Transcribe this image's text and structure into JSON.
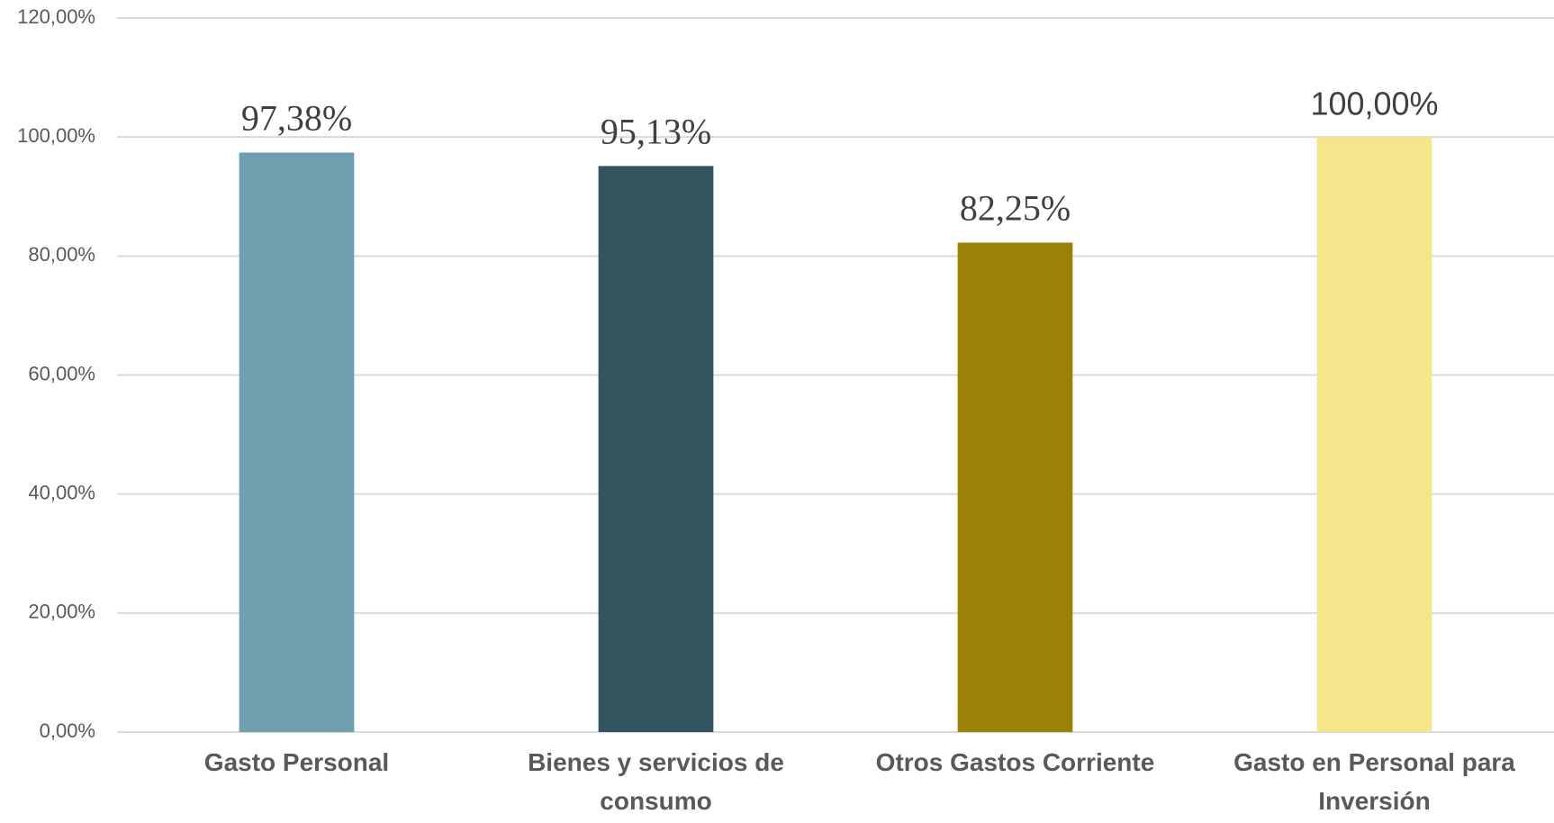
{
  "chart_data": {
    "type": "bar",
    "categories": [
      "Gasto Personal",
      "Bienes y servicios de consumo",
      "Otros Gastos Corriente",
      "Gasto en Personal para Inversión"
    ],
    "values": [
      97.38,
      95.13,
      82.25,
      100
    ],
    "value_labels": [
      "97,38%",
      "95,13%",
      "82,25%",
      "100,00%"
    ],
    "colors": [
      "#6fa0b0",
      "#33535e",
      "#9a8206",
      "#f5e68c"
    ],
    "ylim": [
      0,
      120
    ],
    "yticks": [
      {
        "value": 0,
        "label": "0,00%"
      },
      {
        "value": 20,
        "label": "20,00%"
      },
      {
        "value": 40,
        "label": "40,00%"
      },
      {
        "value": 60,
        "label": "60,00%"
      },
      {
        "value": 80,
        "label": "80,00%"
      },
      {
        "value": 100,
        "label": "100,00%"
      },
      {
        "value": 120,
        "label": "120,00%"
      }
    ],
    "grid": true
  }
}
